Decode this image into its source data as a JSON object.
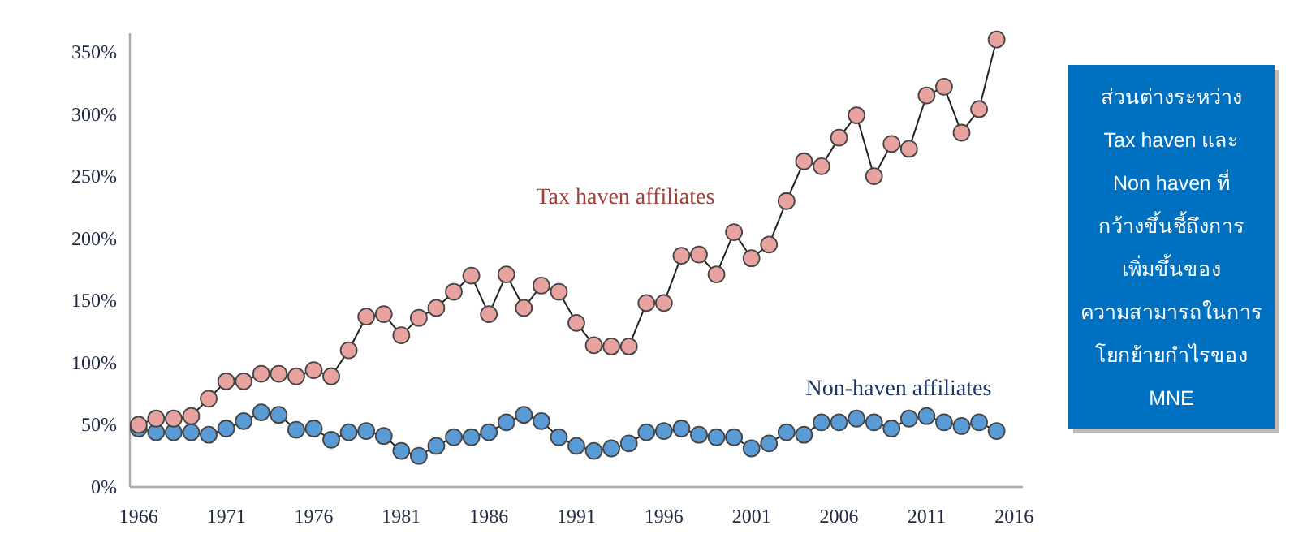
{
  "chart_data": {
    "type": "line",
    "x": [
      1966,
      1967,
      1968,
      1969,
      1970,
      1971,
      1972,
      1973,
      1974,
      1975,
      1976,
      1977,
      1978,
      1979,
      1980,
      1981,
      1982,
      1983,
      1984,
      1985,
      1986,
      1987,
      1988,
      1989,
      1990,
      1991,
      1992,
      1993,
      1994,
      1995,
      1996,
      1997,
      1998,
      1999,
      2000,
      2001,
      2002,
      2003,
      2004,
      2005,
      2006,
      2007,
      2008,
      2009,
      2010,
      2011,
      2012,
      2013,
      2014,
      2015
    ],
    "series": [
      {
        "name": "Tax haven affiliates",
        "color": "#e8a3a0",
        "values": [
          50,
          55,
          55,
          57,
          71,
          85,
          85,
          91,
          91,
          89,
          94,
          89,
          110,
          137,
          139,
          122,
          136,
          144,
          157,
          170,
          139,
          171,
          144,
          162,
          157,
          132,
          114,
          113,
          113,
          148,
          148,
          186,
          187,
          171,
          205,
          184,
          195,
          230,
          262,
          258,
          281,
          299,
          250,
          276,
          272,
          315,
          322,
          285,
          304,
          360
        ]
      },
      {
        "name": "Non-haven affiliates",
        "color": "#5b9bd5",
        "values": [
          47,
          44,
          44,
          44,
          42,
          47,
          53,
          60,
          58,
          46,
          47,
          38,
          44,
          45,
          41,
          29,
          25,
          33,
          40,
          40,
          44,
          52,
          58,
          53,
          40,
          33,
          29,
          31,
          35,
          44,
          45,
          47,
          42,
          40,
          40,
          31,
          35,
          44,
          42,
          52,
          52,
          55,
          52,
          47,
          55,
          57,
          52,
          49,
          52,
          45
        ]
      }
    ],
    "xlim": [
      1965.5,
      2016.5
    ],
    "xticks": [
      1966,
      1971,
      1976,
      1981,
      1986,
      1991,
      1996,
      2001,
      2006,
      2011,
      2016
    ],
    "ylim": [
      0,
      365
    ],
    "yticks": [
      {
        "value": 0,
        "label": "0%"
      },
      {
        "value": 50,
        "label": "50%"
      },
      {
        "value": 100,
        "label": "100%"
      },
      {
        "value": 150,
        "label": "150%"
      },
      {
        "value": 200,
        "label": "200%"
      },
      {
        "value": 250,
        "label": "250%"
      },
      {
        "value": 300,
        "label": "300%"
      },
      {
        "value": 350,
        "label": "350%"
      }
    ],
    "marker": "circle",
    "line_style": "solid",
    "annotations": [
      "ส่วนต่างระหว่าง\nTax haven และ\nNon haven ที่\nกว้างขึ้นชี้ถึงการ\nเพิ่มขึ้นของ\nความสามารถในการ\nโยกย้ายกำไรของ\nMNE"
    ]
  }
}
